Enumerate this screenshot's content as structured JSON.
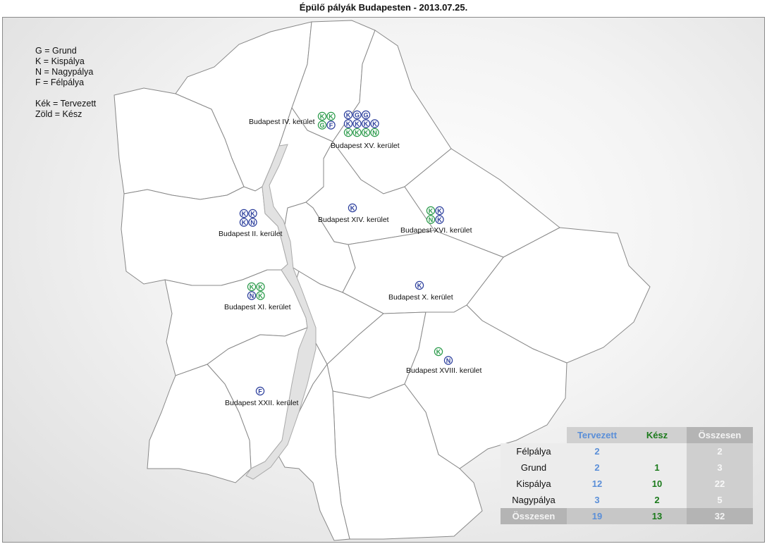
{
  "title": "Épülő pályák Budapesten - 2013.07.25.",
  "legend": {
    "lines_types": [
      "G = Grund",
      "K = Kispálya",
      "N = Nagypálya",
      "F = Félpálya"
    ],
    "lines_colors": [
      "Kék = Tervezett",
      "Zöld = Kész"
    ]
  },
  "colors": {
    "planned": "#2b3e9c",
    "done": "#2a9a4a"
  },
  "districts": [
    {
      "label": "Budapest IV. kerület",
      "markers": [
        {
          "letter": "K",
          "status": "done"
        },
        {
          "letter": "K",
          "status": "done"
        },
        {
          "letter": "G",
          "status": "done"
        },
        {
          "letter": "F",
          "status": "planned"
        }
      ]
    },
    {
      "label": "Budapest XV. kerület",
      "markers": [
        {
          "letter": "K",
          "status": "planned"
        },
        {
          "letter": "G",
          "status": "planned"
        },
        {
          "letter": "G",
          "status": "planned"
        },
        {
          "letter": "K",
          "status": "planned"
        },
        {
          "letter": "K",
          "status": "planned"
        },
        {
          "letter": "K",
          "status": "planned"
        },
        {
          "letter": "K",
          "status": "planned"
        },
        {
          "letter": "K",
          "status": "done"
        },
        {
          "letter": "K",
          "status": "done"
        },
        {
          "letter": "K",
          "status": "done"
        },
        {
          "letter": "N",
          "status": "done"
        }
      ]
    },
    {
      "label": "Budapest II. kerület",
      "markers": [
        {
          "letter": "K",
          "status": "planned"
        },
        {
          "letter": "K",
          "status": "planned"
        },
        {
          "letter": "K",
          "status": "planned"
        },
        {
          "letter": "N",
          "status": "planned"
        }
      ]
    },
    {
      "label": "Budapest XIV. kerület",
      "markers": [
        {
          "letter": "K",
          "status": "planned"
        }
      ]
    },
    {
      "label": "Budapest XVI. kerület",
      "markers": [
        {
          "letter": "K",
          "status": "done"
        },
        {
          "letter": "K",
          "status": "planned"
        },
        {
          "letter": "N",
          "status": "done"
        },
        {
          "letter": "K",
          "status": "planned"
        }
      ]
    },
    {
      "label": "Budapest XI. kerület",
      "markers": [
        {
          "letter": "K",
          "status": "done"
        },
        {
          "letter": "K",
          "status": "done"
        },
        {
          "letter": "N",
          "status": "planned"
        },
        {
          "letter": "K",
          "status": "done"
        }
      ]
    },
    {
      "label": "Budapest X. kerület",
      "markers": [
        {
          "letter": "K",
          "status": "planned"
        }
      ]
    },
    {
      "label": "Budapest XVIII. kerület",
      "markers": [
        {
          "letter": "K",
          "status": "done"
        },
        {
          "letter": "N",
          "status": "planned"
        }
      ]
    },
    {
      "label": "Budapest XXII. kerület",
      "markers": [
        {
          "letter": "F",
          "status": "planned"
        }
      ]
    }
  ],
  "table": {
    "headers": [
      "Tervezett",
      "Kész",
      "Összesen"
    ],
    "rows": [
      {
        "label": "Félpálya",
        "tervezett": "2",
        "kesz": "",
        "osszesen": "2"
      },
      {
        "label": "Grund",
        "tervezett": "2",
        "kesz": "1",
        "osszesen": "3"
      },
      {
        "label": "Kispálya",
        "tervezett": "12",
        "kesz": "10",
        "osszesen": "22"
      },
      {
        "label": "Nagypálya",
        "tervezett": "3",
        "kesz": "2",
        "osszesen": "5"
      }
    ],
    "total": {
      "label": "Összesen",
      "tervezett": "19",
      "kesz": "13",
      "osszesen": "32"
    }
  }
}
